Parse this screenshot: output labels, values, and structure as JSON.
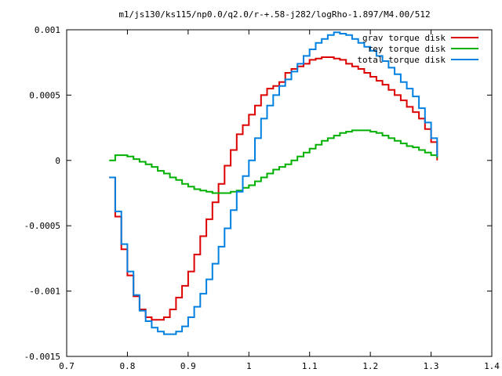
{
  "chart_data": {
    "type": "line",
    "title": "m1/js130/ks115/np0.0/q2.0/r-+.58-j282/logRho-1.897/M4.00/512",
    "xlabel": "",
    "ylabel": "",
    "xlim": [
      0.7,
      1.4
    ],
    "ylim": [
      -0.0015,
      0.001
    ],
    "x_ticks": [
      0.7,
      0.8,
      0.9,
      1.0,
      1.1,
      1.2,
      1.3,
      1.4
    ],
    "x_tick_labels": [
      "0.7",
      "0.8",
      "0.9",
      "1",
      "1.1",
      "1.2",
      "1.3",
      "1.4"
    ],
    "y_ticks": [
      -0.0015,
      -0.001,
      -0.0005,
      0,
      0.0005,
      0.001
    ],
    "y_tick_labels": [
      "-0.0015",
      "-0.001",
      "-0.0005",
      "0",
      "0.0005",
      "0.001"
    ],
    "grid": false,
    "legend_position": "top-right",
    "series": [
      {
        "name": "grav torque disk",
        "color": "#dd0000",
        "x": [
          0.77,
          0.78,
          0.79,
          0.8,
          0.81,
          0.82,
          0.83,
          0.84,
          0.85,
          0.86,
          0.87,
          0.88,
          0.89,
          0.9,
          0.91,
          0.92,
          0.93,
          0.94,
          0.95,
          0.96,
          0.97,
          0.98,
          0.99,
          1.0,
          1.01,
          1.02,
          1.03,
          1.04,
          1.05,
          1.06,
          1.07,
          1.08,
          1.09,
          1.1,
          1.11,
          1.12,
          1.13,
          1.14,
          1.15,
          1.16,
          1.17,
          1.18,
          1.19,
          1.2,
          1.21,
          1.22,
          1.23,
          1.24,
          1.25,
          1.26,
          1.27,
          1.28,
          1.29,
          1.3,
          1.31
        ],
        "y": [
          -0.00013,
          -0.00043,
          -0.00068,
          -0.00088,
          -0.00104,
          -0.00114,
          -0.0012,
          -0.00122,
          -0.00122,
          -0.0012,
          -0.00114,
          -0.00105,
          -0.00096,
          -0.00085,
          -0.00072,
          -0.00058,
          -0.00045,
          -0.00032,
          -0.00018,
          -4e-05,
          8e-05,
          0.0002,
          0.00027,
          0.00035,
          0.00042,
          0.0005,
          0.00055,
          0.00057,
          0.0006,
          0.00067,
          0.0007,
          0.00072,
          0.00074,
          0.00077,
          0.00078,
          0.00079,
          0.00079,
          0.00078,
          0.00077,
          0.00074,
          0.00072,
          0.0007,
          0.00067,
          0.00064,
          0.00061,
          0.00058,
          0.00054,
          0.0005,
          0.00046,
          0.00041,
          0.00037,
          0.00032,
          0.00024,
          0.00014,
          0.0
        ]
      },
      {
        "name": "rey torque disk",
        "color": "#00b000",
        "x": [
          0.77,
          0.78,
          0.79,
          0.8,
          0.81,
          0.82,
          0.83,
          0.84,
          0.85,
          0.86,
          0.87,
          0.88,
          0.89,
          0.9,
          0.91,
          0.92,
          0.93,
          0.94,
          0.95,
          0.96,
          0.97,
          0.98,
          0.99,
          1.0,
          1.01,
          1.02,
          1.03,
          1.04,
          1.05,
          1.06,
          1.07,
          1.08,
          1.09,
          1.1,
          1.11,
          1.12,
          1.13,
          1.14,
          1.15,
          1.16,
          1.17,
          1.18,
          1.19,
          1.2,
          1.21,
          1.22,
          1.23,
          1.24,
          1.25,
          1.26,
          1.27,
          1.28,
          1.29,
          1.3,
          1.31
        ],
        "y": [
          0.0,
          4e-05,
          4e-05,
          3e-05,
          1e-05,
          -1e-05,
          -3e-05,
          -5e-05,
          -8e-05,
          -0.0001,
          -0.00013,
          -0.00015,
          -0.00018,
          -0.0002,
          -0.00022,
          -0.00023,
          -0.00024,
          -0.00025,
          -0.00025,
          -0.00025,
          -0.00024,
          -0.00023,
          -0.00021,
          -0.00019,
          -0.00016,
          -0.00013,
          -0.0001,
          -7e-05,
          -5e-05,
          -3e-05,
          0.0,
          3e-05,
          6e-05,
          9e-05,
          0.00012,
          0.00015,
          0.00017,
          0.00019,
          0.00021,
          0.00022,
          0.00023,
          0.00023,
          0.00023,
          0.00022,
          0.00021,
          0.00019,
          0.00017,
          0.00015,
          0.00013,
          0.00011,
          0.0001,
          8e-05,
          6e-05,
          4e-05,
          2e-05
        ]
      },
      {
        "name": "total torque disk",
        "color": "#0080e0",
        "x": [
          0.77,
          0.78,
          0.79,
          0.8,
          0.81,
          0.82,
          0.83,
          0.84,
          0.85,
          0.86,
          0.87,
          0.88,
          0.89,
          0.9,
          0.91,
          0.92,
          0.93,
          0.94,
          0.95,
          0.96,
          0.97,
          0.98,
          0.99,
          1.0,
          1.01,
          1.02,
          1.03,
          1.04,
          1.05,
          1.06,
          1.07,
          1.08,
          1.09,
          1.1,
          1.11,
          1.12,
          1.13,
          1.14,
          1.15,
          1.16,
          1.17,
          1.18,
          1.19,
          1.2,
          1.21,
          1.22,
          1.23,
          1.24,
          1.25,
          1.26,
          1.27,
          1.28,
          1.29,
          1.3,
          1.31
        ],
        "y": [
          -0.00013,
          -0.00039,
          -0.00064,
          -0.00085,
          -0.00103,
          -0.00115,
          -0.00123,
          -0.00128,
          -0.00131,
          -0.00133,
          -0.00133,
          -0.00131,
          -0.00127,
          -0.0012,
          -0.00112,
          -0.00102,
          -0.00091,
          -0.00079,
          -0.00066,
          -0.00052,
          -0.00038,
          -0.00024,
          -0.00012,
          0.0,
          0.00017,
          0.00032,
          0.00042,
          0.0005,
          0.00057,
          0.00062,
          0.00068,
          0.00074,
          0.0008,
          0.00085,
          0.0009,
          0.00093,
          0.00096,
          0.00098,
          0.00097,
          0.00096,
          0.00093,
          0.0009,
          0.00087,
          0.00084,
          0.0008,
          0.00076,
          0.00071,
          0.00066,
          0.0006,
          0.00055,
          0.00049,
          0.0004,
          0.00029,
          0.00017,
          3e-05
        ]
      }
    ]
  }
}
